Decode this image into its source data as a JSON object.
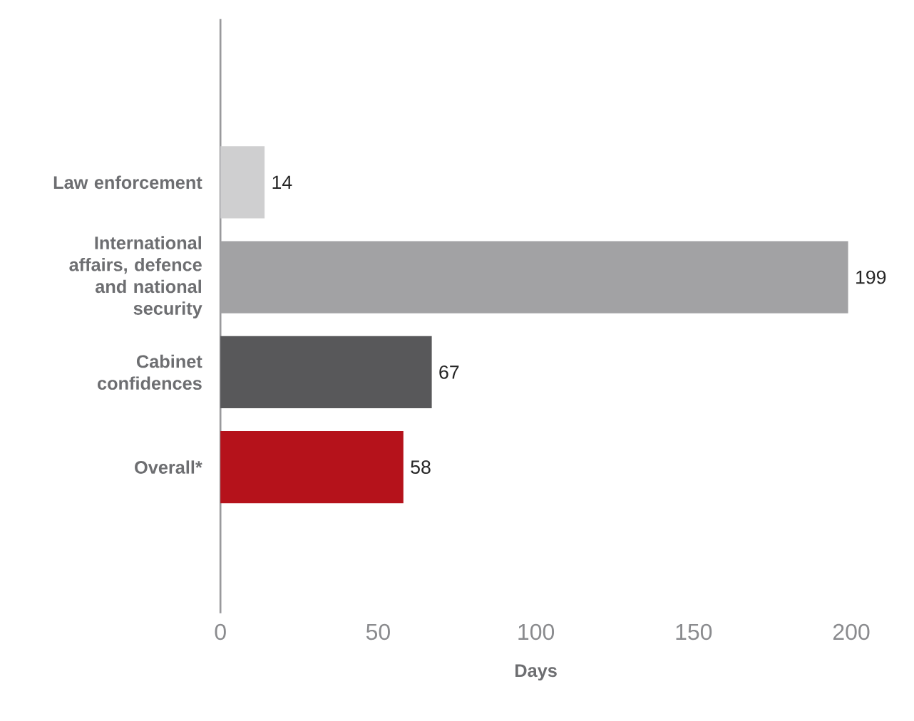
{
  "chart_data": {
    "type": "bar",
    "orientation": "horizontal",
    "categories": [
      "Law enforcement",
      "International affairs, defence and national security",
      "Cabinet confidences",
      "Overall*"
    ],
    "values": [
      14,
      199,
      67,
      58
    ],
    "colors": [
      "#cfcfd0",
      "#a2a2a4",
      "#58585a",
      "#b5121b"
    ],
    "xlabel": "Days",
    "xlim": [
      0,
      200
    ],
    "xticks": [
      0,
      50,
      100,
      150,
      200
    ],
    "data_labels": true
  }
}
